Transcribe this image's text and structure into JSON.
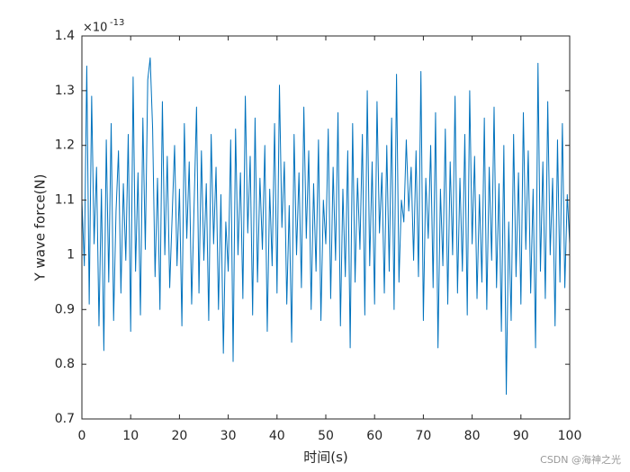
{
  "chart_data": {
    "type": "line",
    "xlabel": "时间(s)",
    "ylabel": "Y wave force(N)",
    "y_exponent_label": {
      "base": "×10",
      "exponent": "-13"
    },
    "watermark": "CSDN @海神之光",
    "xlim": [
      0,
      100
    ],
    "xticks": [
      0,
      10,
      20,
      30,
      40,
      50,
      60,
      70,
      80,
      90,
      100
    ],
    "ylim": [
      0.7,
      1.4
    ],
    "yticks": [
      0.7,
      0.8,
      0.9,
      1,
      1.1,
      1.2,
      1.3,
      1.4
    ],
    "grid": false,
    "series": [
      {
        "color": "#0072bd",
        "x": [
          0,
          0.5,
          1,
          1.5,
          2,
          2.5,
          3,
          3.5,
          4,
          4.5,
          5,
          5.5,
          6,
          6.5,
          7,
          7.5,
          8,
          8.5,
          9,
          9.5,
          10,
          10.5,
          11,
          11.5,
          12,
          12.5,
          13,
          13.5,
          14,
          14.5,
          15,
          15.5,
          16,
          16.5,
          17,
          17.5,
          18,
          18.5,
          19,
          19.5,
          20,
          20.5,
          21,
          21.5,
          22,
          22.5,
          23,
          23.5,
          24,
          24.5,
          25,
          25.5,
          26,
          26.5,
          27,
          27.5,
          28,
          28.5,
          29,
          29.5,
          30,
          30.5,
          31,
          31.5,
          32,
          32.5,
          33,
          33.5,
          34,
          34.5,
          35,
          35.5,
          36,
          36.5,
          37,
          37.5,
          38,
          38.5,
          39,
          39.5,
          40,
          40.5,
          41,
          41.5,
          42,
          42.5,
          43,
          43.5,
          44,
          44.5,
          45,
          45.5,
          46,
          46.5,
          47,
          47.5,
          48,
          48.5,
          49,
          49.5,
          50,
          50.5,
          51,
          51.5,
          52,
          52.5,
          53,
          53.5,
          54,
          54.5,
          55,
          55.5,
          56,
          56.5,
          57,
          57.5,
          58,
          58.5,
          59,
          59.5,
          60,
          60.5,
          61,
          61.5,
          62,
          62.5,
          63,
          63.5,
          64,
          64.5,
          65,
          65.5,
          66,
          66.5,
          67,
          67.5,
          68,
          68.5,
          69,
          69.5,
          70,
          70.5,
          71,
          71.5,
          72,
          72.5,
          73,
          73.5,
          74,
          74.5,
          75,
          75.5,
          76,
          76.5,
          77,
          77.5,
          78,
          78.5,
          79,
          79.5,
          80,
          80.5,
          81,
          81.5,
          82,
          82.5,
          83,
          83.5,
          84,
          84.5,
          85,
          85.5,
          86,
          86.5,
          87,
          87.5,
          88,
          88.5,
          89,
          89.5,
          90,
          90.5,
          91,
          91.5,
          92,
          92.5,
          93,
          93.5,
          94,
          94.5,
          95,
          95.5,
          96,
          96.5,
          97,
          97.5,
          98,
          98.5,
          99,
          99.5,
          100
        ],
        "values": [
          1.1,
          0.98,
          1.345,
          0.91,
          1.29,
          1.02,
          1.16,
          0.87,
          1.12,
          0.825,
          1.21,
          0.95,
          1.24,
          0.88,
          1.08,
          1.19,
          0.93,
          1.13,
          0.99,
          1.22,
          0.86,
          1.325,
          0.97,
          1.15,
          0.89,
          1.25,
          1.01,
          1.32,
          1.36,
          1.23,
          0.96,
          1.14,
          0.9,
          1.28,
          1.0,
          1.18,
          0.94,
          1.07,
          1.2,
          0.98,
          1.12,
          0.87,
          1.24,
          1.03,
          1.17,
          0.91,
          1.09,
          1.27,
          0.93,
          1.19,
          0.99,
          1.13,
          0.88,
          1.22,
          1.02,
          1.16,
          0.9,
          1.11,
          0.82,
          1.06,
          0.97,
          1.21,
          0.805,
          1.23,
          1.0,
          1.15,
          0.92,
          1.29,
          1.04,
          1.18,
          0.89,
          1.25,
          0.95,
          1.14,
          1.01,
          1.2,
          0.86,
          1.12,
          0.98,
          1.24,
          0.93,
          1.31,
          1.05,
          1.17,
          0.91,
          1.09,
          0.84,
          1.22,
          1.0,
          1.15,
          0.94,
          1.27,
          1.03,
          1.19,
          0.9,
          1.13,
          0.97,
          1.21,
          0.88,
          1.1,
          1.02,
          1.23,
          0.92,
          1.16,
          0.99,
          1.26,
          0.87,
          1.12,
          0.96,
          1.19,
          0.83,
          1.24,
          0.95,
          1.14,
          1.01,
          1.22,
          0.89,
          1.3,
          0.98,
          1.17,
          0.91,
          1.28,
          1.04,
          1.15,
          0.93,
          1.2,
          0.97,
          1.25,
          0.9,
          1.33,
          0.95,
          1.1,
          1.06,
          1.21,
          1.08,
          1.16,
          0.99,
          1.19,
          0.96,
          1.335,
          0.88,
          1.14,
          1.03,
          1.2,
          0.94,
          1.26,
          0.83,
          1.12,
          0.98,
          1.23,
          0.91,
          1.17,
          1.0,
          1.29,
          0.93,
          1.14,
          0.97,
          1.22,
          0.89,
          1.3,
          1.02,
          1.18,
          0.92,
          1.11,
          0.95,
          1.25,
          0.9,
          1.16,
          0.99,
          1.27,
          0.94,
          1.13,
          0.86,
          1.2,
          0.745,
          1.06,
          0.88,
          1.22,
          0.96,
          1.15,
          0.91,
          1.26,
          1.01,
          1.19,
          0.93,
          1.12,
          0.83,
          1.35,
          0.97,
          1.17,
          0.92,
          1.28,
          1.0,
          1.14,
          0.87,
          1.21,
          0.95,
          1.24,
          0.94,
          1.11,
          1.02
        ]
      }
    ]
  }
}
